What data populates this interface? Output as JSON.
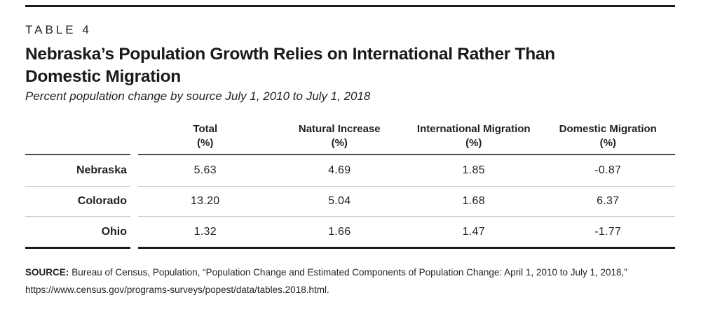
{
  "figure": {
    "kicker": "TABLE 4",
    "title_line1": "Nebraska’s Population Growth Relies on International Rather Than",
    "title_line2": "Domestic Migration",
    "subtitle": "Percent population change by source July 1, 2010 to July 1, 2018"
  },
  "chart_data": {
    "type": "table",
    "title": "Nebraska’s Population Growth Relies on International Rather Than Domestic Migration",
    "subtitle": "Percent population change by source July 1, 2010 to July 1, 2018",
    "columns": [
      {
        "label": "Total",
        "unit": "(%)"
      },
      {
        "label": "Natural Increase",
        "unit": "(%)"
      },
      {
        "label": "International Migration",
        "unit": "(%)"
      },
      {
        "label": "Domestic Migration",
        "unit": "(%)"
      }
    ],
    "rows": [
      {
        "label": "Nebraska",
        "values": [
          "5.63",
          "4.69",
          "1.85",
          "-0.87"
        ]
      },
      {
        "label": "Colorado",
        "values": [
          "13.20",
          "5.04",
          "1.68",
          "6.37"
        ]
      },
      {
        "label": "Ohio",
        "values": [
          "1.32",
          "1.66",
          "1.47",
          "-1.77"
        ]
      }
    ]
  },
  "source": {
    "label": "SOURCE:",
    "line1": "Bureau of Census, Population, “Population Change and Estimated Components of Population Change: April 1, 2010 to July 1, 2018,”",
    "line2": "https://www.census.gov/programs-surveys/popest/data/tables.2018.html."
  },
  "colors": {
    "text": "#231f20",
    "header_rule": "#4a4a4a",
    "row_separator": "#c6c6c6",
    "heavy_rule": "#1a1a1a"
  }
}
